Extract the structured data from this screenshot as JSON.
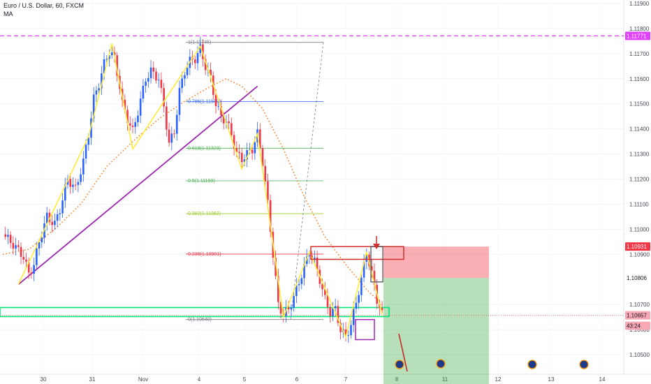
{
  "header": {
    "title": "Euro / U.S. Dollar, 60, FXCM",
    "indicator": "MA"
  },
  "chart_data": {
    "type": "candlestick",
    "symbol": "Euro / U.S. Dollar",
    "interval": "60",
    "source": "FXCM",
    "y_ticks": [
      "1.11900",
      "1.11800",
      "1.11700",
      "1.11600",
      "1.11500",
      "1.11400",
      "1.11300",
      "1.11200",
      "1.11100",
      "1.11000",
      "1.10900",
      "1.10700",
      "1.10600",
      "1.10500"
    ],
    "x_ticks": [
      "30",
      "31",
      "Nov",
      "4",
      "5",
      "6",
      "7",
      "8",
      "11",
      "12",
      "13",
      "14"
    ],
    "price_labels": [
      {
        "text": "1.11771",
        "value": 1.11771,
        "bg": "#e040fb",
        "fg": "#ffffff"
      },
      {
        "text": "1.10931",
        "value": 1.10931,
        "bg": "#f23645",
        "fg": "#ffffff"
      },
      {
        "text": "1.10806",
        "value": 1.10806,
        "bg": "#ffffff",
        "fg": "#131722"
      },
      {
        "text": "1.10657",
        "value": 1.10657,
        "bg": "#f7a8b4",
        "fg": "#131722"
      },
      {
        "text": "43:24",
        "value": 1.10615,
        "bg": "#f7a8b4",
        "fg": "#131722"
      }
    ],
    "fib_levels": [
      {
        "label": "1(1.11745)",
        "value": 1.11745,
        "color": "#787b86"
      },
      {
        "label": "0.786(1.11509)",
        "value": 1.11509,
        "color": "#2962ff"
      },
      {
        "label": "0.618(1.11323)",
        "value": 1.11323,
        "color": "#4caf50"
      },
      {
        "label": "0.5(1.11193)",
        "value": 1.11193,
        "color": "#4caf50"
      },
      {
        "label": "0.382(1.11062)",
        "value": 1.11062,
        "color": "#9ccc2e"
      },
      {
        "label": "0.236(1.10901)",
        "value": 1.10901,
        "color": "#f23645"
      },
      {
        "label": "0(1.10640)",
        "value": 1.1064,
        "color": "#787b86"
      }
    ],
    "horizontal_levels": [
      {
        "value": 1.11771,
        "color": "#e040fb",
        "style": "dashed"
      }
    ],
    "support_zone": {
      "top": 1.10688,
      "bottom": 1.10652,
      "color": "#00e676"
    },
    "position": {
      "entry": 1.10806,
      "stop": 1.10931,
      "target": 1.1046,
      "stop_color": "#f23645",
      "target_color": "#4caf50"
    },
    "close_series": [
      {
        "x": 0,
        "y": 1.1098
      },
      {
        "x": 4,
        "y": 1.1094
      },
      {
        "x": 8,
        "y": 1.1089
      },
      {
        "x": 10,
        "y": 1.1082
      },
      {
        "x": 12,
        "y": 1.1086
      },
      {
        "x": 14,
        "y": 1.1095
      },
      {
        "x": 17,
        "y": 1.1105
      },
      {
        "x": 20,
        "y": 1.1102
      },
      {
        "x": 22,
        "y": 1.1108
      },
      {
        "x": 25,
        "y": 1.112
      },
      {
        "x": 28,
        "y": 1.1116
      },
      {
        "x": 31,
        "y": 1.1127
      },
      {
        "x": 33,
        "y": 1.1138
      },
      {
        "x": 35,
        "y": 1.1152
      },
      {
        "x": 37,
        "y": 1.1158
      },
      {
        "x": 39,
        "y": 1.1166
      },
      {
        "x": 41,
        "y": 1.1171
      },
      {
        "x": 43,
        "y": 1.1168
      },
      {
        "x": 45,
        "y": 1.1157
      },
      {
        "x": 46,
        "y": 1.115
      },
      {
        "x": 48,
        "y": 1.1144
      },
      {
        "x": 50,
        "y": 1.1139
      },
      {
        "x": 52,
        "y": 1.1147
      },
      {
        "x": 55,
        "y": 1.116
      },
      {
        "x": 57,
        "y": 1.1163
      },
      {
        "x": 60,
        "y": 1.116
      },
      {
        "x": 62,
        "y": 1.1149
      },
      {
        "x": 64,
        "y": 1.1134
      },
      {
        "x": 66,
        "y": 1.1139
      },
      {
        "x": 68,
        "y": 1.1155
      },
      {
        "x": 70,
        "y": 1.1163
      },
      {
        "x": 72,
        "y": 1.1167
      },
      {
        "x": 74,
        "y": 1.1168
      },
      {
        "x": 76,
        "y": 1.1172
      },
      {
        "x": 78,
        "y": 1.1165
      },
      {
        "x": 80,
        "y": 1.116
      },
      {
        "x": 82,
        "y": 1.115
      },
      {
        "x": 84,
        "y": 1.1145
      },
      {
        "x": 86,
        "y": 1.1143
      },
      {
        "x": 88,
        "y": 1.1138
      },
      {
        "x": 90,
        "y": 1.113
      },
      {
        "x": 92,
        "y": 1.1128
      },
      {
        "x": 94,
        "y": 1.113
      },
      {
        "x": 96,
        "y": 1.1132
      },
      {
        "x": 98,
        "y": 1.1138
      },
      {
        "x": 100,
        "y": 1.1127
      },
      {
        "x": 102,
        "y": 1.111
      },
      {
        "x": 104,
        "y": 1.109
      },
      {
        "x": 106,
        "y": 1.107
      },
      {
        "x": 108,
        "y": 1.1066
      },
      {
        "x": 110,
        "y": 1.1068
      },
      {
        "x": 112,
        "y": 1.1073
      },
      {
        "x": 114,
        "y": 1.1079
      },
      {
        "x": 116,
        "y": 1.1085
      },
      {
        "x": 118,
        "y": 1.1091
      },
      {
        "x": 120,
        "y": 1.1087
      },
      {
        "x": 122,
        "y": 1.108
      },
      {
        "x": 124,
        "y": 1.1072
      },
      {
        "x": 126,
        "y": 1.1067
      },
      {
        "x": 128,
        "y": 1.1068
      },
      {
        "x": 130,
        "y": 1.106
      },
      {
        "x": 132,
        "y": 1.1057
      },
      {
        "x": 134,
        "y": 1.1062
      },
      {
        "x": 136,
        "y": 1.1071
      },
      {
        "x": 138,
        "y": 1.108
      },
      {
        "x": 140,
        "y": 1.1091
      },
      {
        "x": 142,
        "y": 1.1082
      },
      {
        "x": 144,
        "y": 1.1072
      },
      {
        "x": 146,
        "y": 1.1066
      }
    ],
    "moving_average": [
      {
        "x": 0,
        "y": 1.109
      },
      {
        "x": 10,
        "y": 1.1092
      },
      {
        "x": 20,
        "y": 1.11
      },
      {
        "x": 30,
        "y": 1.111
      },
      {
        "x": 40,
        "y": 1.1125
      },
      {
        "x": 50,
        "y": 1.1135
      },
      {
        "x": 60,
        "y": 1.1144
      },
      {
        "x": 70,
        "y": 1.1151
      },
      {
        "x": 80,
        "y": 1.1157
      },
      {
        "x": 86,
        "y": 1.116
      },
      {
        "x": 92,
        "y": 1.1157
      },
      {
        "x": 100,
        "y": 1.1148
      },
      {
        "x": 108,
        "y": 1.1132
      },
      {
        "x": 116,
        "y": 1.1113
      },
      {
        "x": 124,
        "y": 1.1097
      },
      {
        "x": 132,
        "y": 1.1086
      },
      {
        "x": 140,
        "y": 1.1076
      },
      {
        "x": 146,
        "y": 1.107
      }
    ],
    "trendline": [
      {
        "x": 6,
        "y": 1.1078
      },
      {
        "x": 98,
        "y": 1.1157
      }
    ],
    "grid": true
  }
}
